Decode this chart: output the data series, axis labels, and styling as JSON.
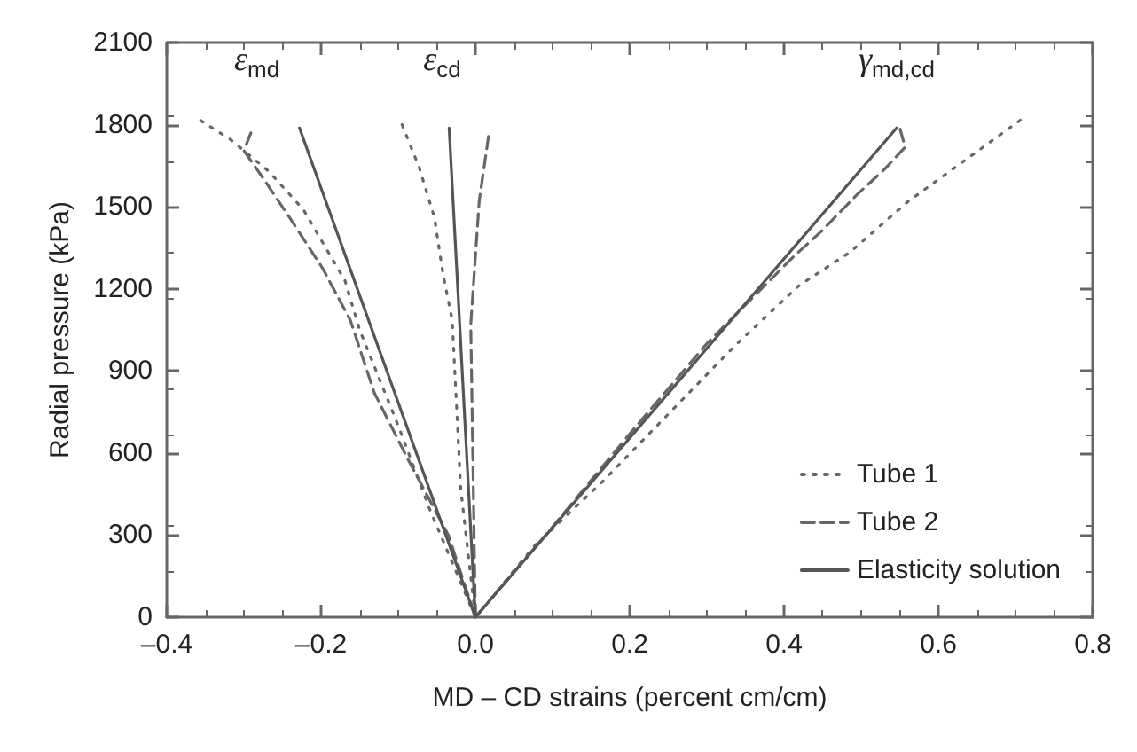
{
  "chart_data": {
    "type": "line",
    "xlabel": "MD – CD strains (percent cm/cm)",
    "ylabel": "Radial pressure (kPa)",
    "xlim": [
      -0.4,
      0.8
    ],
    "ylim": [
      0,
      2100
    ],
    "xticks": [
      {
        "value": -0.4,
        "label": "–0.4"
      },
      {
        "value": -0.2,
        "label": "–0.2"
      },
      {
        "value": 0,
        "label": "0.0"
      },
      0.2,
      0.4,
      0.6,
      0.8
    ],
    "yticks": [
      0,
      300,
      600,
      900,
      1200,
      1500,
      1800,
      2100
    ],
    "grid": false,
    "legend": "bottom right",
    "marker": "none",
    "annotations": [
      "ε$_{md}$",
      "ε$_{cd}$",
      "γ$_{md,cd}$"
    ],
    "series": [
      {
        "name": "Tube 1",
        "color": "#666666",
        "line_style": "dotted",
        "x": [
          -0.356,
          -0.317,
          -0.268,
          -0.223,
          -0.169,
          -0.15,
          -0.1,
          -0.06,
          0,
          null,
          -0.095,
          -0.073,
          -0.053,
          -0.042,
          -0.03,
          -0.019,
          0,
          null,
          0,
          0.077,
          0.166,
          0.337,
          0.419,
          0.486,
          0.561,
          0.636,
          0.71
        ],
        "values": [
          1815,
          1745,
          1630,
          1490,
          1230,
          1050,
          700,
          400,
          0,
          null,
          1800,
          1645,
          1460,
          1255,
          1085,
          470,
          0,
          null,
          0,
          262,
          499,
          994,
          1211,
          1335,
          1520,
          1673,
          1824
        ]
      },
      {
        "name": "Tube 2",
        "color": "#666666",
        "line_style": "dashed",
        "x": [
          -0.291,
          -0.3,
          -0.274,
          -0.236,
          -0.198,
          -0.162,
          -0.131,
          -0.087,
          -0.035,
          0,
          null,
          0.017,
          0.005,
          -0.006,
          0,
          null,
          0,
          0.1,
          0.2,
          0.3,
          0.412,
          0.449,
          0.494,
          0.53,
          0.557,
          0.55
        ],
        "values": [
          1770,
          1705,
          1600,
          1440,
          1275,
          1085,
          820,
          575,
          300,
          0,
          null,
          1757,
          1522,
          1070,
          0,
          null,
          0,
          330,
          670,
          1000,
          1317,
          1412,
          1543,
          1636,
          1718,
          1788
        ]
      },
      {
        "name": "Elasticity solution",
        "color": "#555555",
        "line_style": "solid",
        "x": [
          -0.228,
          0,
          null,
          -0.034,
          0,
          null,
          0,
          0.546
        ],
        "values": [
          1788,
          0,
          null,
          1788,
          0,
          null,
          0,
          1788
        ]
      }
    ]
  }
}
